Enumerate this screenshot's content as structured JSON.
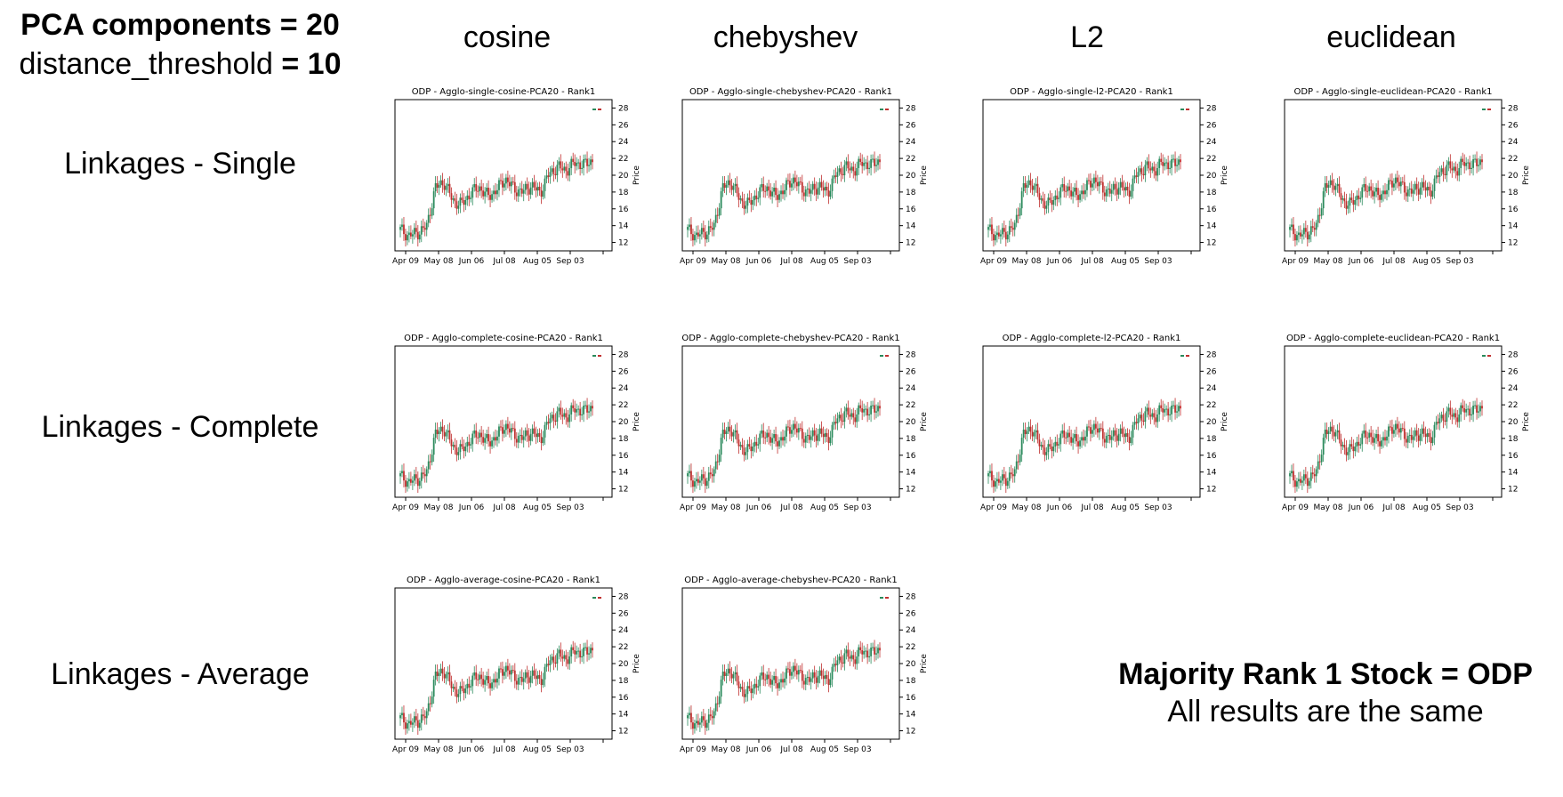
{
  "header": {
    "line1": "PCA components = 20",
    "line2_prefix": "distance_threshold ",
    "line2_bold": "= 10"
  },
  "columns": [
    "cosine",
    "chebyshev",
    "L2",
    "euclidean"
  ],
  "rows": [
    "Linkages - Single",
    "Linkages - Complete",
    "Linkages - Average"
  ],
  "summary": {
    "title": "Majority Rank 1 Stock = ODP",
    "subtitle": "All results are the same"
  },
  "colors": {
    "up": "#2a8a5c",
    "down": "#c0302f",
    "axis": "#000000"
  },
  "chart_data": [
    {
      "type": "candlestick",
      "title": "ODP - Agglo-single-cosine-PCA20 -  Rank1",
      "xlabel": "",
      "ylabel": "Price",
      "xticks": [
        "Apr 09",
        "May 08",
        "Jun 06",
        "Jul 08",
        "Aug 05",
        "Sep 03"
      ],
      "yticks": [
        12,
        14,
        16,
        18,
        20,
        22,
        24,
        26,
        28
      ],
      "ylim": [
        11,
        29
      ],
      "approx_close": [
        13.5,
        12.8,
        13.2,
        13.8,
        18.5,
        19.2,
        17.0,
        16.5,
        17.8,
        18.6,
        17.5,
        18.2,
        19.6,
        18.4,
        18.0,
        18.8,
        17.9,
        20.1,
        21.0,
        20.6,
        21.5,
        21.2,
        21.8
      ]
    },
    {
      "type": "candlestick",
      "title": "ODP - Agglo-single-chebyshev-PCA20 -  Rank1",
      "xlabel": "",
      "ylabel": "Price",
      "xticks": [
        "Apr 09",
        "May 08",
        "Jun 06",
        "Jul 08",
        "Aug 05",
        "Sep 03"
      ],
      "yticks": [
        12,
        14,
        16,
        18,
        20,
        22,
        24,
        26,
        28
      ],
      "ylim": [
        11,
        29
      ],
      "approx_close": [
        13.5,
        12.8,
        13.2,
        13.8,
        18.5,
        19.2,
        17.0,
        16.5,
        17.8,
        18.6,
        17.5,
        18.2,
        19.6,
        18.4,
        18.0,
        18.8,
        17.9,
        20.1,
        21.0,
        20.6,
        21.5,
        21.2,
        21.8
      ]
    },
    {
      "type": "candlestick",
      "title": "ODP - Agglo-single-l2-PCA20 -  Rank1",
      "xlabel": "",
      "ylabel": "Price",
      "xticks": [
        "Apr 09",
        "May 08",
        "Jun 06",
        "Jul 08",
        "Aug 05",
        "Sep 03"
      ],
      "yticks": [
        12,
        14,
        16,
        18,
        20,
        22,
        24,
        26,
        28
      ],
      "ylim": [
        11,
        29
      ],
      "approx_close": [
        13.5,
        12.8,
        13.2,
        13.8,
        18.5,
        19.2,
        17.0,
        16.5,
        17.8,
        18.6,
        17.5,
        18.2,
        19.6,
        18.4,
        18.0,
        18.8,
        17.9,
        20.1,
        21.0,
        20.6,
        21.5,
        21.2,
        21.8
      ]
    },
    {
      "type": "candlestick",
      "title": "ODP - Agglo-single-euclidean-PCA20 -  Rank1",
      "xlabel": "",
      "ylabel": "Price",
      "xticks": [
        "Apr 09",
        "May 08",
        "Jun 06",
        "Jul 08",
        "Aug 05",
        "Sep 03"
      ],
      "yticks": [
        12,
        14,
        16,
        18,
        20,
        22,
        24,
        26,
        28
      ],
      "ylim": [
        11,
        29
      ],
      "approx_close": [
        13.5,
        12.8,
        13.2,
        13.8,
        18.5,
        19.2,
        17.0,
        16.5,
        17.8,
        18.6,
        17.5,
        18.2,
        19.6,
        18.4,
        18.0,
        18.8,
        17.9,
        20.1,
        21.0,
        20.6,
        21.5,
        21.2,
        21.8
      ]
    },
    {
      "type": "candlestick",
      "title": "ODP - Agglo-complete-cosine-PCA20 -  Rank1",
      "xlabel": "",
      "ylabel": "Price",
      "xticks": [
        "Apr 09",
        "May 08",
        "Jun 06",
        "Jul 08",
        "Aug 05",
        "Sep 03"
      ],
      "yticks": [
        12,
        14,
        16,
        18,
        20,
        22,
        24,
        26,
        28
      ],
      "ylim": [
        11,
        29
      ],
      "approx_close": [
        13.5,
        12.8,
        13.2,
        13.8,
        18.5,
        19.2,
        17.0,
        16.5,
        17.8,
        18.6,
        17.5,
        18.2,
        19.6,
        18.4,
        18.0,
        18.8,
        17.9,
        20.1,
        21.0,
        20.6,
        21.5,
        21.2,
        21.8
      ]
    },
    {
      "type": "candlestick",
      "title": "ODP - Agglo-complete-chebyshev-PCA20 -  Rank1",
      "xlabel": "",
      "ylabel": "Price",
      "xticks": [
        "Apr 09",
        "May 08",
        "Jun 06",
        "Jul 08",
        "Aug 05",
        "Sep 03"
      ],
      "yticks": [
        12,
        14,
        16,
        18,
        20,
        22,
        24,
        26,
        28
      ],
      "ylim": [
        11,
        29
      ],
      "approx_close": [
        13.5,
        12.8,
        13.2,
        13.8,
        18.5,
        19.2,
        17.0,
        16.5,
        17.8,
        18.6,
        17.5,
        18.2,
        19.6,
        18.4,
        18.0,
        18.8,
        17.9,
        20.1,
        21.0,
        20.6,
        21.5,
        21.2,
        21.8
      ]
    },
    {
      "type": "candlestick",
      "title": "ODP - Agglo-complete-l2-PCA20 -  Rank1",
      "xlabel": "",
      "ylabel": "Price",
      "xticks": [
        "Apr 09",
        "May 08",
        "Jun 06",
        "Jul 08",
        "Aug 05",
        "Sep 03"
      ],
      "yticks": [
        12,
        14,
        16,
        18,
        20,
        22,
        24,
        26,
        28
      ],
      "ylim": [
        11,
        29
      ],
      "approx_close": [
        13.5,
        12.8,
        13.2,
        13.8,
        18.5,
        19.2,
        17.0,
        16.5,
        17.8,
        18.6,
        17.5,
        18.2,
        19.6,
        18.4,
        18.0,
        18.8,
        17.9,
        20.1,
        21.0,
        20.6,
        21.5,
        21.2,
        21.8
      ]
    },
    {
      "type": "candlestick",
      "title": "ODP - Agglo-complete-euclidean-PCA20 -  Rank1",
      "xlabel": "",
      "ylabel": "Price",
      "xticks": [
        "Apr 09",
        "May 08",
        "Jun 06",
        "Jul 08",
        "Aug 05",
        "Sep 03"
      ],
      "yticks": [
        12,
        14,
        16,
        18,
        20,
        22,
        24,
        26,
        28
      ],
      "ylim": [
        11,
        29
      ],
      "approx_close": [
        13.5,
        12.8,
        13.2,
        13.8,
        18.5,
        19.2,
        17.0,
        16.5,
        17.8,
        18.6,
        17.5,
        18.2,
        19.6,
        18.4,
        18.0,
        18.8,
        17.9,
        20.1,
        21.0,
        20.6,
        21.5,
        21.2,
        21.8
      ]
    },
    {
      "type": "candlestick",
      "title": "ODP - Agglo-average-cosine-PCA20 -  Rank1",
      "xlabel": "",
      "ylabel": "Price",
      "xticks": [
        "Apr 09",
        "May 08",
        "Jun 06",
        "Jul 08",
        "Aug 05",
        "Sep 03"
      ],
      "yticks": [
        12,
        14,
        16,
        18,
        20,
        22,
        24,
        26,
        28
      ],
      "ylim": [
        11,
        29
      ],
      "approx_close": [
        13.5,
        12.8,
        13.2,
        13.8,
        18.5,
        19.2,
        17.0,
        16.5,
        17.8,
        18.6,
        17.5,
        18.2,
        19.6,
        18.4,
        18.0,
        18.8,
        17.9,
        20.1,
        21.0,
        20.6,
        21.5,
        21.2,
        21.8
      ]
    },
    {
      "type": "candlestick",
      "title": "ODP - Agglo-average-chebyshev-PCA20 -  Rank1",
      "xlabel": "",
      "ylabel": "Price",
      "xticks": [
        "Apr 09",
        "May 08",
        "Jun 06",
        "Jul 08",
        "Aug 05",
        "Sep 03"
      ],
      "yticks": [
        12,
        14,
        16,
        18,
        20,
        22,
        24,
        26,
        28
      ],
      "ylim": [
        11,
        29
      ],
      "approx_close": [
        13.5,
        12.8,
        13.2,
        13.8,
        18.5,
        19.2,
        17.0,
        16.5,
        17.8,
        18.6,
        17.5,
        18.2,
        19.6,
        18.4,
        18.0,
        18.8,
        17.9,
        20.1,
        21.0,
        20.6,
        21.5,
        21.2,
        21.8
      ]
    }
  ]
}
